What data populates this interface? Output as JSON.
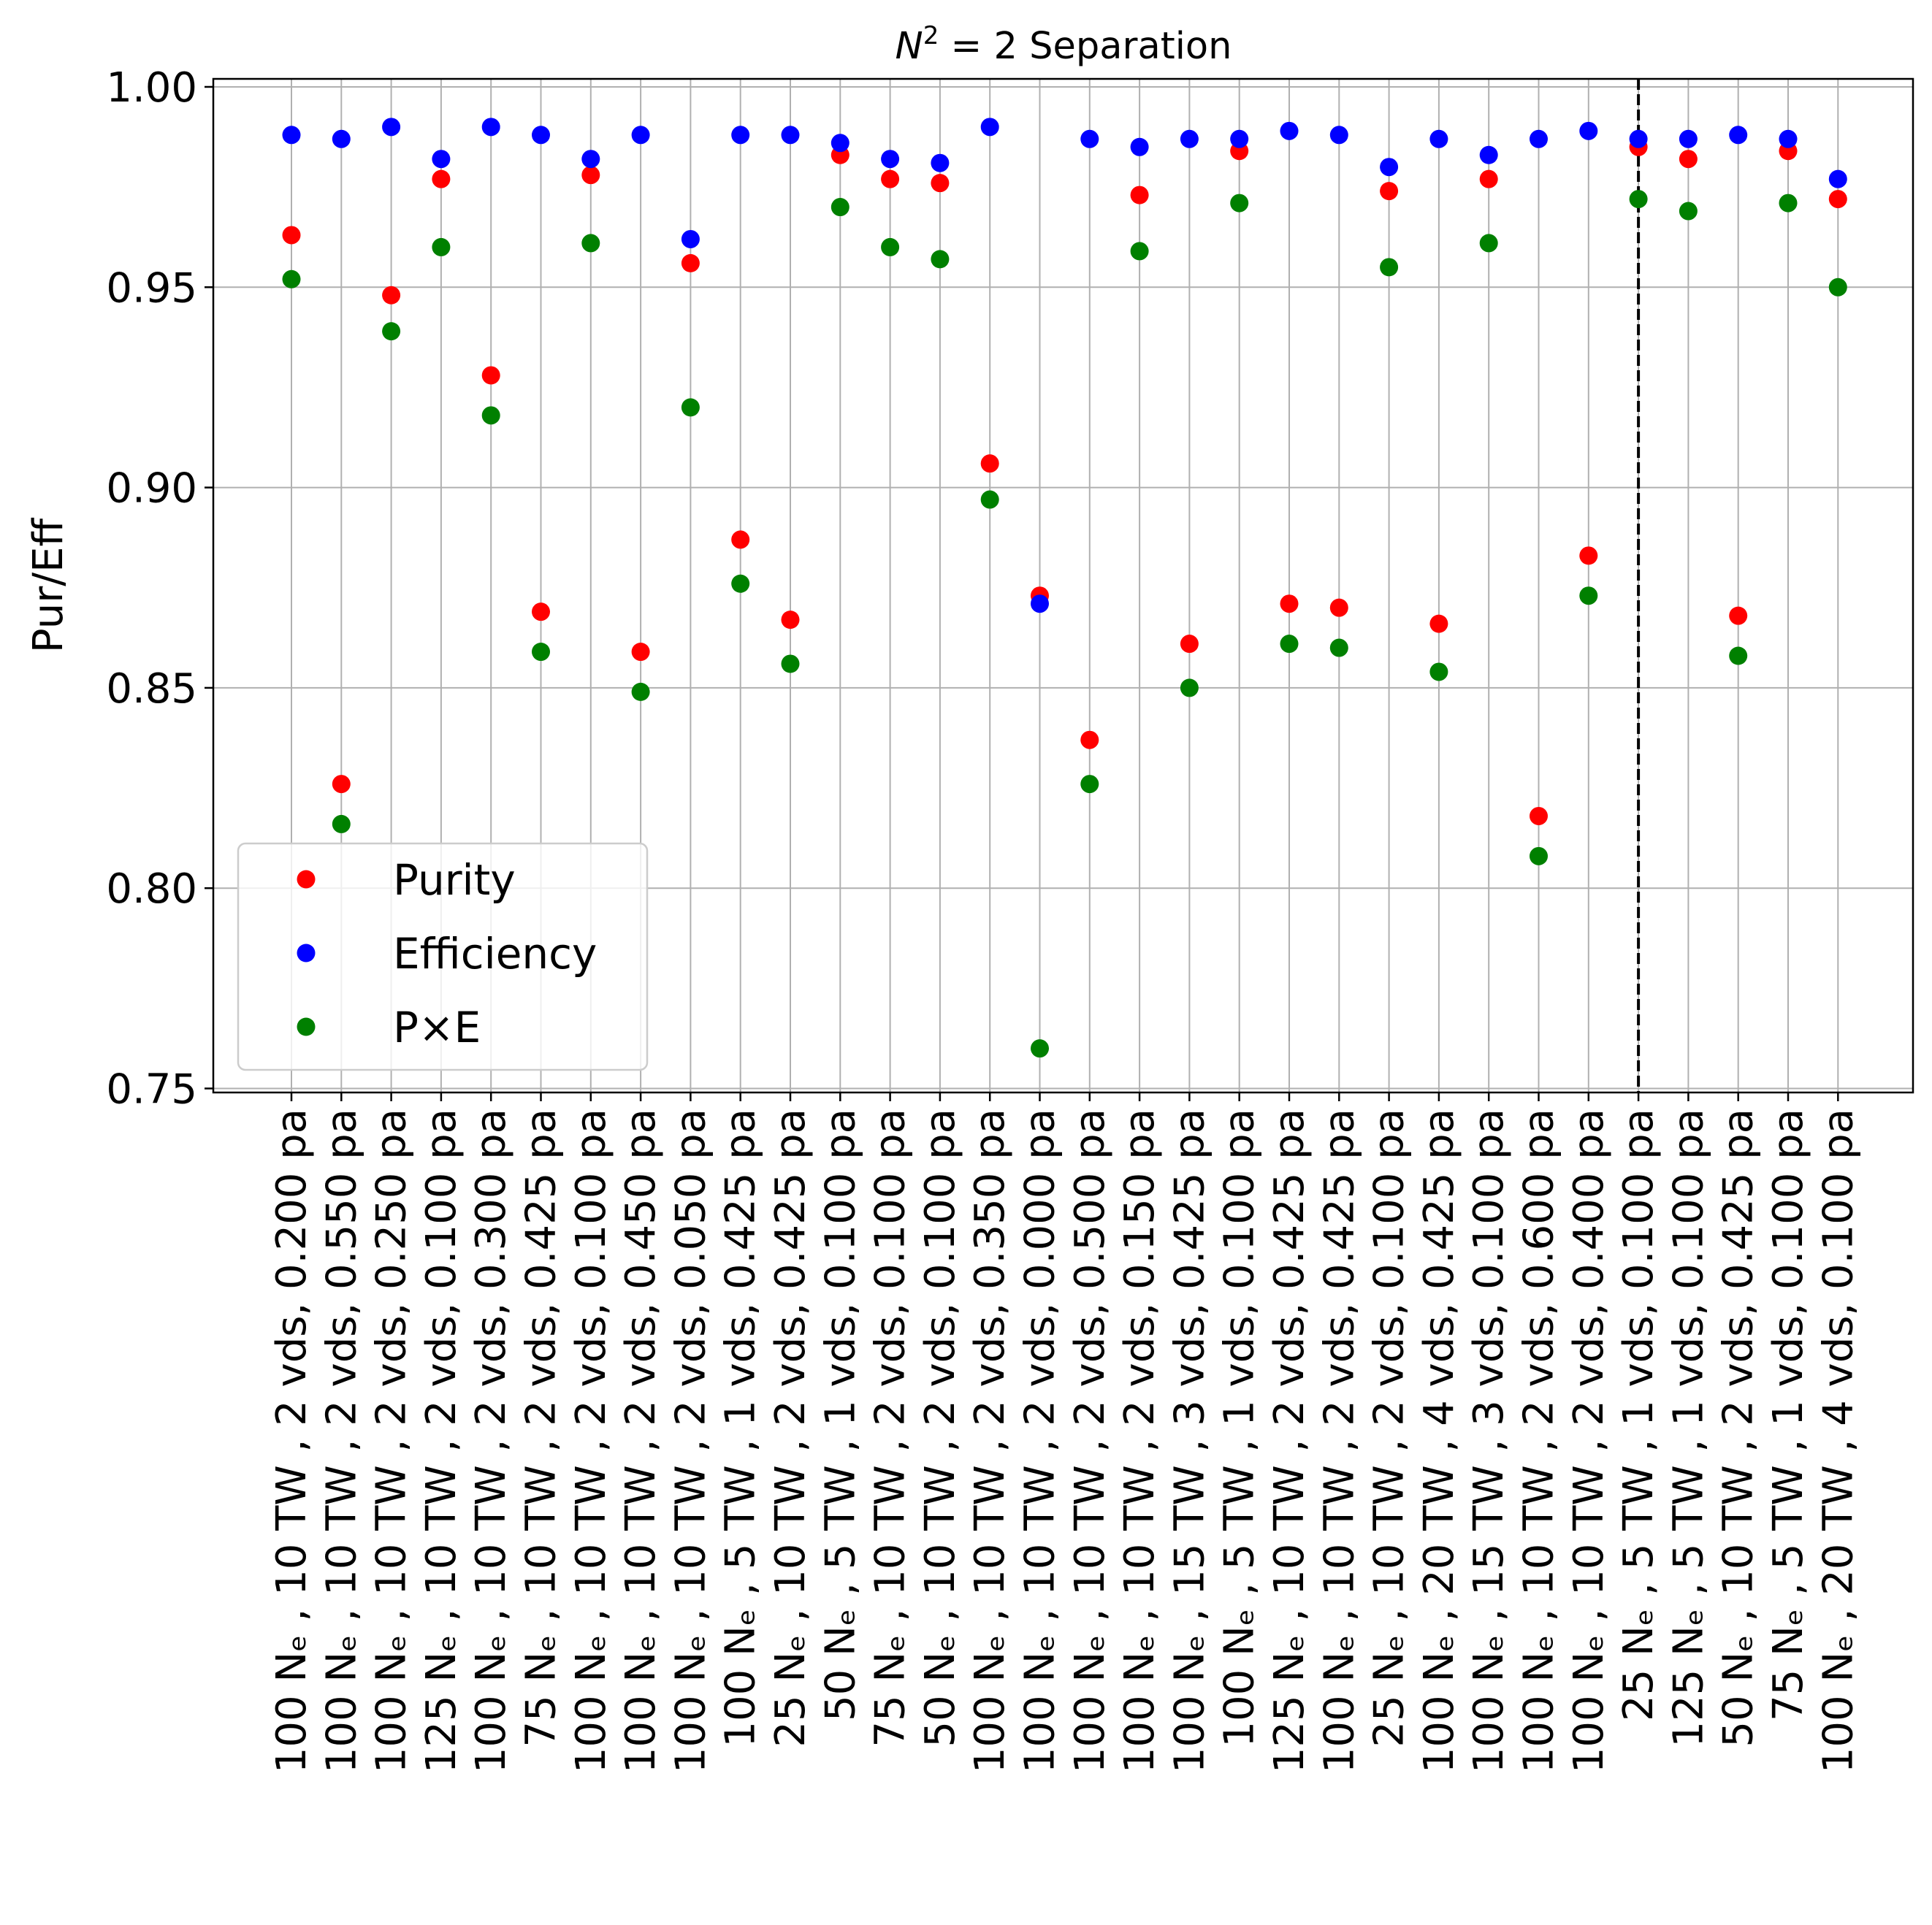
{
  "chart_data": {
    "type": "scatter",
    "title": "N² = 2 Separation",
    "title_parts": {
      "symbol": "N",
      "superscript": "2",
      "rest": " = 2 Separation"
    },
    "xlabel": "",
    "ylabel": "Pur/Eff",
    "ylim": [
      0.749,
      1.002
    ],
    "yticks": [
      0.75,
      0.8,
      0.85,
      0.9,
      0.95,
      1.0
    ],
    "ytick_labels": [
      "0.75",
      "0.80",
      "0.85",
      "0.90",
      "0.95",
      "1.00"
    ],
    "grid": true,
    "legend_position": "bottom-left",
    "vline_category_index": 27,
    "vline_style": "dashed",
    "categories": [
      "100 Nₑ , 10 TW , 2 vds, 0.200 pa",
      "100 Nₑ , 10 TW , 2 vds, 0.550 pa",
      "100 Nₑ , 10 TW , 2 vds, 0.250 pa",
      "125 Nₑ , 10 TW , 2 vds, 0.100 pa",
      "100 Nₑ , 10 TW , 2 vds, 0.300 pa",
      "75 Nₑ , 10 TW , 2 vds, 0.425 pa",
      "100 Nₑ , 10 TW , 2 vds, 0.100 pa",
      "100 Nₑ , 10 TW , 2 vds, 0.450 pa",
      "100 Nₑ , 10 TW , 2 vds, 0.050 pa",
      "100 Nₑ , 5 TW , 1 vds, 0.425 pa",
      "25 Nₑ , 10 TW , 2 vds, 0.425 pa",
      "50 Nₑ , 5 TW , 1 vds, 0.100 pa",
      "75 Nₑ , 10 TW , 2 vds, 0.100 pa",
      "50 Nₑ , 10 TW , 2 vds, 0.100 pa",
      "100 Nₑ , 10 TW , 2 vds, 0.350 pa",
      "100 Nₑ , 10 TW , 2 vds, 0.000 pa",
      "100 Nₑ , 10 TW , 2 vds, 0.500 pa",
      "100 Nₑ , 10 TW , 2 vds, 0.150 pa",
      "100 Nₑ , 15 TW , 3 vds, 0.425 pa",
      "100 Nₑ , 5 TW , 1 vds, 0.100 pa",
      "125 Nₑ , 10 TW , 2 vds, 0.425 pa",
      "100 Nₑ , 10 TW , 2 vds, 0.425 pa",
      "25 Nₑ , 10 TW , 2 vds, 0.100 pa",
      "100 Nₑ , 20 TW , 4 vds, 0.425 pa",
      "100 Nₑ , 15 TW , 3 vds, 0.100 pa",
      "100 Nₑ , 10 TW , 2 vds, 0.600 pa",
      "100 Nₑ , 10 TW , 2 vds, 0.400 pa",
      "25 Nₑ , 5 TW , 1 vds, 0.100 pa",
      "125 Nₑ , 5 TW , 1 vds, 0.100 pa",
      "50 Nₑ , 10 TW , 2 vds, 0.425 pa",
      "75 Nₑ , 5 TW , 1 vds, 0.100 pa",
      "100 Nₑ , 20 TW , 4 vds, 0.100 pa"
    ],
    "series": [
      {
        "name": "Purity",
        "color": "#ff0000",
        "values": [
          0.963,
          0.826,
          0.948,
          0.977,
          0.928,
          0.869,
          0.978,
          0.859,
          0.956,
          0.887,
          0.867,
          0.983,
          0.977,
          0.976,
          0.906,
          0.873,
          0.837,
          0.973,
          0.861,
          0.984,
          0.871,
          0.87,
          0.974,
          0.866,
          0.977,
          0.818,
          0.883,
          0.985,
          0.982,
          0.868,
          0.984,
          0.972
        ]
      },
      {
        "name": "Efficiency",
        "color": "#0000ff",
        "values": [
          0.988,
          0.987,
          0.99,
          0.982,
          0.99,
          0.988,
          0.982,
          0.988,
          0.962,
          0.988,
          0.988,
          0.986,
          0.982,
          0.981,
          0.99,
          0.871,
          0.987,
          0.985,
          0.987,
          0.987,
          0.989,
          0.988,
          0.98,
          0.987,
          0.983,
          0.987,
          0.989,
          0.987,
          0.987,
          0.988,
          0.987,
          0.977
        ]
      },
      {
        "name": "P×E",
        "color": "#008000",
        "values": [
          0.952,
          0.816,
          0.939,
          0.96,
          0.918,
          0.859,
          0.961,
          0.849,
          0.92,
          0.876,
          0.856,
          0.97,
          0.96,
          0.957,
          0.897,
          0.76,
          0.826,
          0.959,
          0.85,
          0.971,
          0.861,
          0.86,
          0.955,
          0.854,
          0.961,
          0.808,
          0.873,
          0.972,
          0.969,
          0.858,
          0.971,
          0.95
        ]
      }
    ]
  }
}
